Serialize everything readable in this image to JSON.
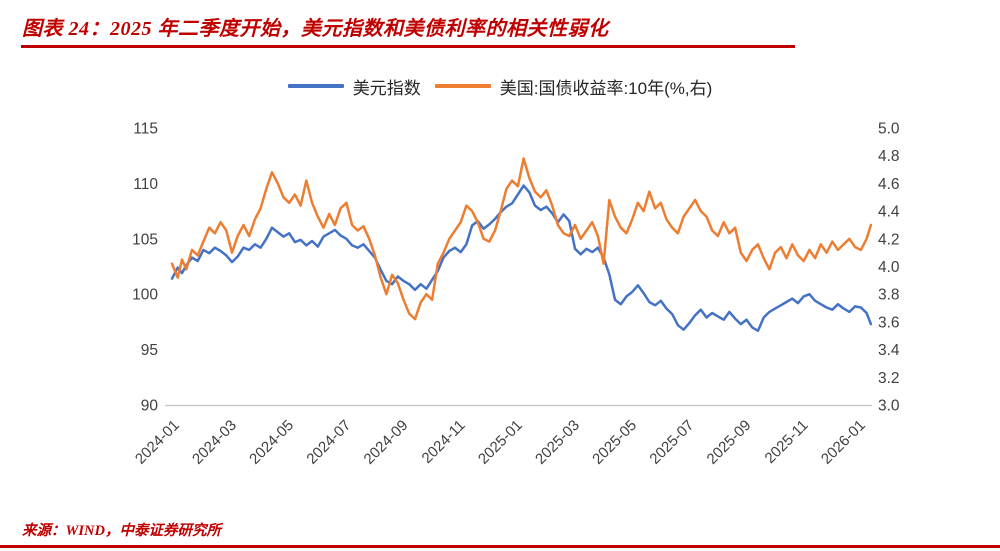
{
  "title": "图表 24：2025 年二季度开始，美元指数和美债利率的相关性弱化",
  "source": "来源：WIND，中泰证券研究所",
  "colors": {
    "accent_red": "#c00000",
    "dxy_blue": "#4472C4",
    "yield_orange": "#ED7D31",
    "axis_gray": "#c9c9c9",
    "tick_text": "#404040"
  },
  "legend": [
    {
      "label": "美元指数",
      "color": "#4472C4"
    },
    {
      "label": "美国:国债收益率:10年(%,右)",
      "color": "#ED7D31"
    }
  ],
  "chart_data": {
    "type": "line",
    "title": "2025 年二季度开始，美元指数和美债利率的相关性弱化",
    "xlabel": "",
    "grid": false,
    "legend_position": "top",
    "x_unit": "months since 2024-01",
    "x_ticks": [
      "2024-01",
      "2024-03",
      "2024-05",
      "2024-07",
      "2024-09",
      "2024-11",
      "2025-01",
      "2025-03",
      "2025-05",
      "2025-07",
      "2025-09",
      "2025-11",
      "2026-01"
    ],
    "x_tick_months": [
      0,
      2,
      4,
      6,
      8,
      10,
      12,
      14,
      16,
      18,
      20,
      22,
      24
    ],
    "left_axis": {
      "label": "美元指数",
      "range": [
        90,
        115
      ],
      "ticks": [
        "90",
        "95",
        "100",
        "105",
        "110",
        "115"
      ]
    },
    "right_axis": {
      "label": "美国:国债收益率:10年(%)",
      "range": [
        3.0,
        5.0
      ],
      "ticks": [
        "3.0",
        "3.2",
        "3.4",
        "3.6",
        "3.8",
        "4.0",
        "4.2",
        "4.4",
        "4.6",
        "4.8",
        "5.0"
      ]
    },
    "series": [
      {
        "name": "美元指数",
        "axis": "left",
        "color": "#4472C4",
        "points": [
          [
            0,
            101.4
          ],
          [
            0.2,
            102.4
          ],
          [
            0.35,
            101.9
          ],
          [
            0.5,
            102.6
          ],
          [
            0.7,
            103.3
          ],
          [
            0.9,
            103.0
          ],
          [
            1.1,
            104.0
          ],
          [
            1.3,
            103.7
          ],
          [
            1.5,
            104.2
          ],
          [
            1.7,
            103.9
          ],
          [
            1.9,
            103.5
          ],
          [
            2.1,
            102.9
          ],
          [
            2.3,
            103.4
          ],
          [
            2.5,
            104.2
          ],
          [
            2.7,
            104.0
          ],
          [
            2.9,
            104.5
          ],
          [
            3.1,
            104.2
          ],
          [
            3.3,
            105.0
          ],
          [
            3.5,
            106.0
          ],
          [
            3.7,
            105.6
          ],
          [
            3.9,
            105.2
          ],
          [
            4.1,
            105.5
          ],
          [
            4.3,
            104.7
          ],
          [
            4.5,
            104.9
          ],
          [
            4.7,
            104.4
          ],
          [
            4.9,
            104.8
          ],
          [
            5.1,
            104.3
          ],
          [
            5.3,
            105.2
          ],
          [
            5.5,
            105.5
          ],
          [
            5.7,
            105.8
          ],
          [
            5.9,
            105.3
          ],
          [
            6.1,
            105.0
          ],
          [
            6.3,
            104.4
          ],
          [
            6.5,
            104.2
          ],
          [
            6.7,
            104.5
          ],
          [
            6.9,
            103.9
          ],
          [
            7.1,
            103.3
          ],
          [
            7.3,
            102.2
          ],
          [
            7.5,
            101.2
          ],
          [
            7.7,
            100.9
          ],
          [
            7.9,
            101.6
          ],
          [
            8.1,
            101.2
          ],
          [
            8.3,
            100.9
          ],
          [
            8.5,
            100.4
          ],
          [
            8.7,
            100.9
          ],
          [
            8.9,
            100.5
          ],
          [
            9.1,
            101.3
          ],
          [
            9.3,
            102.1
          ],
          [
            9.5,
            103.3
          ],
          [
            9.7,
            103.9
          ],
          [
            9.9,
            104.2
          ],
          [
            10.1,
            103.8
          ],
          [
            10.3,
            104.5
          ],
          [
            10.5,
            106.2
          ],
          [
            10.7,
            106.6
          ],
          [
            10.9,
            105.9
          ],
          [
            11.1,
            106.3
          ],
          [
            11.3,
            106.8
          ],
          [
            11.5,
            107.4
          ],
          [
            11.7,
            107.9
          ],
          [
            11.9,
            108.2
          ],
          [
            12.1,
            109.0
          ],
          [
            12.3,
            109.8
          ],
          [
            12.5,
            109.2
          ],
          [
            12.7,
            108.0
          ],
          [
            12.9,
            107.6
          ],
          [
            13.1,
            107.9
          ],
          [
            13.3,
            107.3
          ],
          [
            13.5,
            106.5
          ],
          [
            13.7,
            107.2
          ],
          [
            13.9,
            106.6
          ],
          [
            14.1,
            104.1
          ],
          [
            14.3,
            103.6
          ],
          [
            14.5,
            104.1
          ],
          [
            14.7,
            103.8
          ],
          [
            14.9,
            104.2
          ],
          [
            15.1,
            103.3
          ],
          [
            15.3,
            101.8
          ],
          [
            15.5,
            99.5
          ],
          [
            15.7,
            99.1
          ],
          [
            15.9,
            99.8
          ],
          [
            16.1,
            100.2
          ],
          [
            16.3,
            100.8
          ],
          [
            16.5,
            100.1
          ],
          [
            16.7,
            99.3
          ],
          [
            16.9,
            99.0
          ],
          [
            17.1,
            99.4
          ],
          [
            17.3,
            98.7
          ],
          [
            17.5,
            98.2
          ],
          [
            17.7,
            97.2
          ],
          [
            17.9,
            96.8
          ],
          [
            18.1,
            97.4
          ],
          [
            18.3,
            98.1
          ],
          [
            18.5,
            98.6
          ],
          [
            18.7,
            97.9
          ],
          [
            18.9,
            98.3
          ],
          [
            19.1,
            98.0
          ],
          [
            19.3,
            97.7
          ],
          [
            19.5,
            98.4
          ],
          [
            19.7,
            97.8
          ],
          [
            19.9,
            97.3
          ],
          [
            20.1,
            97.7
          ],
          [
            20.3,
            97.0
          ],
          [
            20.5,
            96.7
          ],
          [
            20.7,
            97.9
          ],
          [
            20.9,
            98.4
          ],
          [
            21.1,
            98.7
          ],
          [
            21.3,
            99.0
          ],
          [
            21.5,
            99.3
          ],
          [
            21.7,
            99.6
          ],
          [
            21.9,
            99.2
          ],
          [
            22.1,
            99.8
          ],
          [
            22.3,
            100.0
          ],
          [
            22.5,
            99.4
          ],
          [
            22.7,
            99.1
          ],
          [
            22.9,
            98.8
          ],
          [
            23.1,
            98.6
          ],
          [
            23.3,
            99.1
          ],
          [
            23.5,
            98.7
          ],
          [
            23.7,
            98.4
          ],
          [
            23.9,
            98.9
          ],
          [
            24.1,
            98.8
          ],
          [
            24.3,
            98.3
          ],
          [
            24.45,
            97.3
          ]
        ]
      },
      {
        "name": "美国:国债收益率:10年(%,右)",
        "axis": "right",
        "color": "#ED7D31",
        "points": [
          [
            0,
            4.02
          ],
          [
            0.2,
            3.92
          ],
          [
            0.35,
            4.05
          ],
          [
            0.5,
            3.98
          ],
          [
            0.7,
            4.12
          ],
          [
            0.9,
            4.08
          ],
          [
            1.1,
            4.18
          ],
          [
            1.3,
            4.28
          ],
          [
            1.5,
            4.24
          ],
          [
            1.7,
            4.32
          ],
          [
            1.9,
            4.26
          ],
          [
            2.1,
            4.1
          ],
          [
            2.3,
            4.22
          ],
          [
            2.5,
            4.3
          ],
          [
            2.7,
            4.22
          ],
          [
            2.9,
            4.34
          ],
          [
            3.1,
            4.42
          ],
          [
            3.3,
            4.56
          ],
          [
            3.5,
            4.68
          ],
          [
            3.7,
            4.6
          ],
          [
            3.9,
            4.5
          ],
          [
            4.1,
            4.46
          ],
          [
            4.3,
            4.52
          ],
          [
            4.5,
            4.44
          ],
          [
            4.7,
            4.62
          ],
          [
            4.9,
            4.46
          ],
          [
            5.1,
            4.36
          ],
          [
            5.3,
            4.28
          ],
          [
            5.5,
            4.38
          ],
          [
            5.7,
            4.3
          ],
          [
            5.9,
            4.42
          ],
          [
            6.1,
            4.46
          ],
          [
            6.3,
            4.3
          ],
          [
            6.5,
            4.26
          ],
          [
            6.7,
            4.29
          ],
          [
            6.9,
            4.2
          ],
          [
            7.1,
            4.08
          ],
          [
            7.3,
            3.92
          ],
          [
            7.5,
            3.8
          ],
          [
            7.7,
            3.94
          ],
          [
            7.9,
            3.88
          ],
          [
            8.1,
            3.76
          ],
          [
            8.3,
            3.66
          ],
          [
            8.5,
            3.62
          ],
          [
            8.7,
            3.74
          ],
          [
            8.9,
            3.8
          ],
          [
            9.1,
            3.76
          ],
          [
            9.3,
            4.02
          ],
          [
            9.5,
            4.1
          ],
          [
            9.7,
            4.2
          ],
          [
            9.9,
            4.26
          ],
          [
            10.1,
            4.32
          ],
          [
            10.3,
            4.44
          ],
          [
            10.5,
            4.4
          ],
          [
            10.7,
            4.32
          ],
          [
            10.9,
            4.2
          ],
          [
            11.1,
            4.18
          ],
          [
            11.3,
            4.26
          ],
          [
            11.5,
            4.4
          ],
          [
            11.7,
            4.56
          ],
          [
            11.9,
            4.62
          ],
          [
            12.1,
            4.58
          ],
          [
            12.3,
            4.78
          ],
          [
            12.5,
            4.64
          ],
          [
            12.7,
            4.54
          ],
          [
            12.9,
            4.5
          ],
          [
            13.1,
            4.55
          ],
          [
            13.3,
            4.44
          ],
          [
            13.5,
            4.3
          ],
          [
            13.7,
            4.24
          ],
          [
            13.9,
            4.22
          ],
          [
            14.1,
            4.3
          ],
          [
            14.3,
            4.2
          ],
          [
            14.5,
            4.26
          ],
          [
            14.7,
            4.32
          ],
          [
            14.9,
            4.22
          ],
          [
            15.1,
            4.02
          ],
          [
            15.3,
            4.48
          ],
          [
            15.5,
            4.36
          ],
          [
            15.7,
            4.28
          ],
          [
            15.9,
            4.24
          ],
          [
            16.1,
            4.34
          ],
          [
            16.3,
            4.46
          ],
          [
            16.5,
            4.4
          ],
          [
            16.7,
            4.54
          ],
          [
            16.9,
            4.42
          ],
          [
            17.1,
            4.46
          ],
          [
            17.3,
            4.34
          ],
          [
            17.5,
            4.28
          ],
          [
            17.7,
            4.24
          ],
          [
            17.9,
            4.36
          ],
          [
            18.1,
            4.42
          ],
          [
            18.3,
            4.48
          ],
          [
            18.5,
            4.4
          ],
          [
            18.7,
            4.36
          ],
          [
            18.9,
            4.26
          ],
          [
            19.1,
            4.22
          ],
          [
            19.3,
            4.32
          ],
          [
            19.5,
            4.24
          ],
          [
            19.7,
            4.28
          ],
          [
            19.9,
            4.1
          ],
          [
            20.1,
            4.04
          ],
          [
            20.3,
            4.12
          ],
          [
            20.5,
            4.16
          ],
          [
            20.7,
            4.06
          ],
          [
            20.9,
            3.98
          ],
          [
            21.1,
            4.1
          ],
          [
            21.3,
            4.14
          ],
          [
            21.5,
            4.06
          ],
          [
            21.7,
            4.16
          ],
          [
            21.9,
            4.08
          ],
          [
            22.1,
            4.04
          ],
          [
            22.3,
            4.12
          ],
          [
            22.5,
            4.06
          ],
          [
            22.7,
            4.16
          ],
          [
            22.9,
            4.1
          ],
          [
            23.1,
            4.18
          ],
          [
            23.3,
            4.12
          ],
          [
            23.5,
            4.16
          ],
          [
            23.7,
            4.2
          ],
          [
            23.9,
            4.14
          ],
          [
            24.1,
            4.12
          ],
          [
            24.3,
            4.2
          ],
          [
            24.45,
            4.3
          ]
        ]
      }
    ]
  }
}
